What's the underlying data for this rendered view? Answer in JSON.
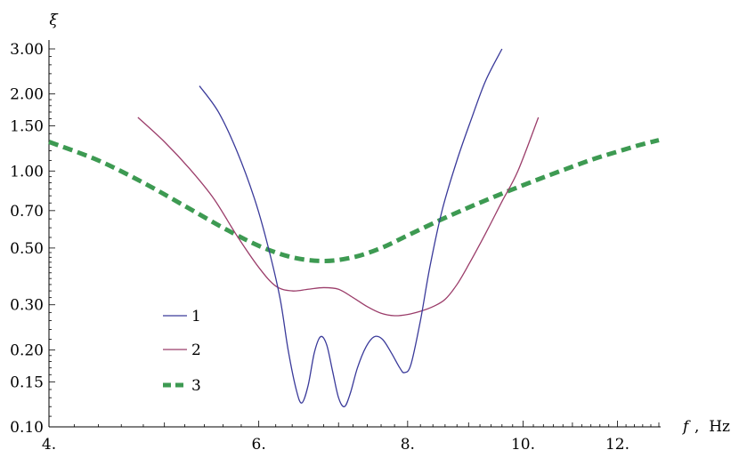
{
  "chart_data": {
    "type": "line",
    "xlabel_symbol": "f",
    "xlabel_unit": ",  Hz",
    "ylabel": "ξ",
    "x_scale": "log",
    "y_scale": "log",
    "xlim": [
      4.0,
      13.0
    ],
    "ylim": [
      0.1,
      3.0
    ],
    "x_ticks": [
      {
        "value": 4.0,
        "label": "4."
      },
      {
        "value": 6.0,
        "label": "6."
      },
      {
        "value": 8.0,
        "label": "8."
      },
      {
        "value": 10.0,
        "label": "10."
      },
      {
        "value": 12.0,
        "label": "12."
      }
    ],
    "y_ticks": [
      {
        "value": 0.1,
        "label": "0.10"
      },
      {
        "value": 0.15,
        "label": "0.15"
      },
      {
        "value": 0.2,
        "label": "0.20"
      },
      {
        "value": 0.3,
        "label": "0.30"
      },
      {
        "value": 0.5,
        "label": "0.50"
      },
      {
        "value": 0.7,
        "label": "0.70"
      },
      {
        "value": 1.0,
        "label": "1.00"
      },
      {
        "value": 1.5,
        "label": "1.50"
      },
      {
        "value": 2.0,
        "label": "2.00"
      },
      {
        "value": 3.0,
        "label": "3.00"
      }
    ],
    "series": [
      {
        "name": "1",
        "color": "#3a3a9a",
        "dashed": false,
        "points": [
          [
            5.35,
            2.15
          ],
          [
            5.55,
            1.7
          ],
          [
            5.75,
            1.2
          ],
          [
            5.95,
            0.78
          ],
          [
            6.1,
            0.52
          ],
          [
            6.25,
            0.32
          ],
          [
            6.35,
            0.2
          ],
          [
            6.45,
            0.14
          ],
          [
            6.52,
            0.124
          ],
          [
            6.6,
            0.145
          ],
          [
            6.68,
            0.195
          ],
          [
            6.76,
            0.225
          ],
          [
            6.84,
            0.21
          ],
          [
            6.92,
            0.165
          ],
          [
            7.0,
            0.13
          ],
          [
            7.08,
            0.12
          ],
          [
            7.16,
            0.135
          ],
          [
            7.26,
            0.17
          ],
          [
            7.38,
            0.205
          ],
          [
            7.5,
            0.225
          ],
          [
            7.62,
            0.22
          ],
          [
            7.75,
            0.195
          ],
          [
            7.88,
            0.17
          ],
          [
            7.95,
            0.163
          ],
          [
            8.05,
            0.175
          ],
          [
            8.2,
            0.26
          ],
          [
            8.35,
            0.42
          ],
          [
            8.55,
            0.7
          ],
          [
            8.8,
            1.1
          ],
          [
            9.05,
            1.6
          ],
          [
            9.3,
            2.25
          ],
          [
            9.6,
            3.0
          ]
        ]
      },
      {
        "name": "2",
        "color": "#9b3d6a",
        "dashed": false,
        "points": [
          [
            4.75,
            1.62
          ],
          [
            5.0,
            1.3
          ],
          [
            5.25,
            1.02
          ],
          [
            5.5,
            0.78
          ],
          [
            5.75,
            0.56
          ],
          [
            6.0,
            0.42
          ],
          [
            6.2,
            0.355
          ],
          [
            6.4,
            0.34
          ],
          [
            6.6,
            0.345
          ],
          [
            6.8,
            0.35
          ],
          [
            7.0,
            0.345
          ],
          [
            7.2,
            0.32
          ],
          [
            7.4,
            0.295
          ],
          [
            7.6,
            0.278
          ],
          [
            7.8,
            0.272
          ],
          [
            8.0,
            0.275
          ],
          [
            8.2,
            0.283
          ],
          [
            8.4,
            0.295
          ],
          [
            8.6,
            0.315
          ],
          [
            8.8,
            0.36
          ],
          [
            9.0,
            0.43
          ],
          [
            9.3,
            0.57
          ],
          [
            9.6,
            0.76
          ],
          [
            9.9,
            1.0
          ],
          [
            10.3,
            1.62
          ]
        ]
      },
      {
        "name": "3",
        "color": "#3d9a52",
        "dashed": true,
        "points": [
          [
            4.0,
            1.3
          ],
          [
            4.4,
            1.1
          ],
          [
            4.8,
            0.9
          ],
          [
            5.2,
            0.73
          ],
          [
            5.6,
            0.6
          ],
          [
            6.0,
            0.51
          ],
          [
            6.4,
            0.46
          ],
          [
            6.8,
            0.445
          ],
          [
            7.2,
            0.46
          ],
          [
            7.6,
            0.5
          ],
          [
            8.0,
            0.56
          ],
          [
            8.5,
            0.64
          ],
          [
            9.0,
            0.72
          ],
          [
            9.5,
            0.8
          ],
          [
            10.0,
            0.88
          ],
          [
            10.5,
            0.96
          ],
          [
            11.0,
            1.04
          ],
          [
            11.5,
            1.12
          ],
          [
            12.0,
            1.19
          ],
          [
            12.5,
            1.26
          ],
          [
            13.0,
            1.32
          ]
        ]
      }
    ],
    "legend": [
      {
        "label": "1",
        "color": "#3a3a9a",
        "dashed": false
      },
      {
        "label": "2",
        "color": "#9b3d6a",
        "dashed": false
      },
      {
        "label": "3",
        "color": "#3d9a52",
        "dashed": true
      }
    ]
  }
}
